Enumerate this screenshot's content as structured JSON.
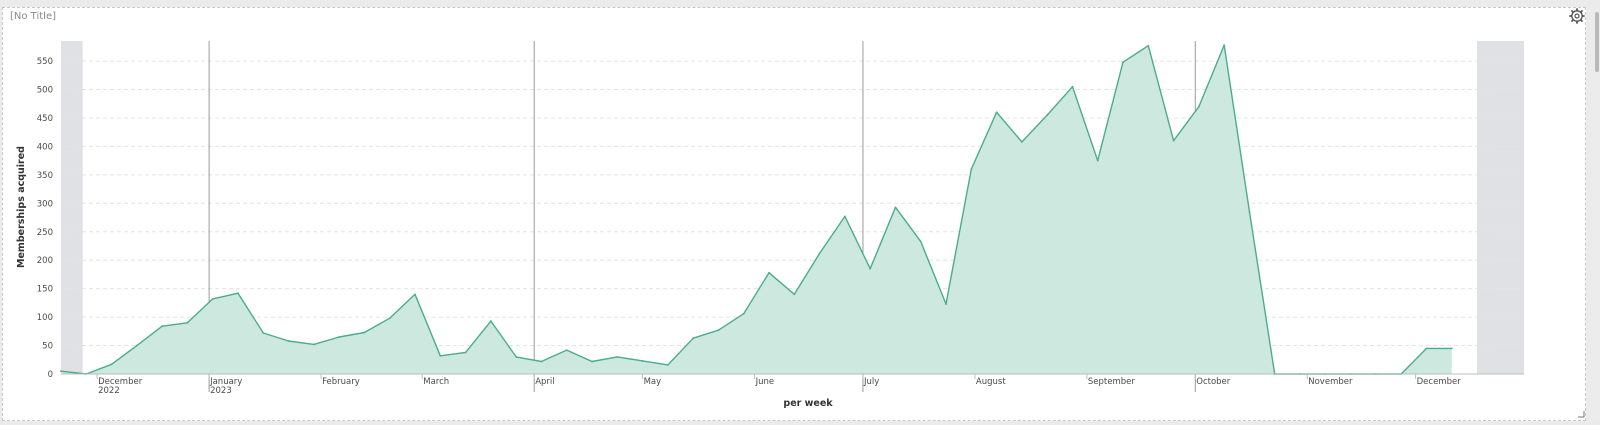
{
  "panel": {
    "title": "[No Title]"
  },
  "icons": {
    "settings": "gear-icon",
    "resize": "resize-handle-icon"
  },
  "colors": {
    "line": "#4aad8c",
    "fill": "#cde8df",
    "band": "#dfe1e5",
    "grid": "#e4e4e4",
    "marker": "#9a9a9a"
  },
  "chart_data": {
    "type": "area",
    "title": "",
    "xlabel": "per week",
    "ylabel": "Memberships acquired",
    "ylim": [
      0,
      580
    ],
    "yticks": [
      0,
      50,
      100,
      150,
      200,
      250,
      300,
      350,
      400,
      450,
      500,
      550
    ],
    "grid": true,
    "legend": "none",
    "x_ticks": [
      {
        "label": "December",
        "label2": "2022",
        "date": "2022-12-01"
      },
      {
        "label": "January",
        "label2": "2023",
        "date": "2023-01-01"
      },
      {
        "label": "February",
        "label2": "",
        "date": "2023-02-01"
      },
      {
        "label": "March",
        "label2": "",
        "date": "2023-03-01"
      },
      {
        "label": "April",
        "label2": "",
        "date": "2023-04-01"
      },
      {
        "label": "May",
        "label2": "",
        "date": "2023-05-01"
      },
      {
        "label": "June",
        "label2": "",
        "date": "2023-06-01"
      },
      {
        "label": "July",
        "label2": "",
        "date": "2023-07-01"
      },
      {
        "label": "August",
        "label2": "",
        "date": "2023-08-01"
      },
      {
        "label": "September",
        "label2": "",
        "date": "2023-09-01"
      },
      {
        "label": "October",
        "label2": "",
        "date": "2023-10-01"
      },
      {
        "label": "November",
        "label2": "",
        "date": "2023-11-01"
      },
      {
        "label": "December",
        "label2": "",
        "date": "2023-12-01"
      }
    ],
    "x_markers": [
      "2023-01-01",
      "2023-04-01",
      "2023-07-01",
      "2023-10-01"
    ],
    "x_range": [
      "2022-11-21",
      "2023-12-31"
    ],
    "shaded_bands": [
      [
        "2022-11-21",
        "2022-11-27"
      ],
      [
        "2023-12-18",
        "2023-12-31"
      ]
    ],
    "series": [
      {
        "x": [
          "2022-11-21",
          "2022-11-28",
          "2022-12-05",
          "2022-12-12",
          "2022-12-19",
          "2022-12-26",
          "2023-01-02",
          "2023-01-09",
          "2023-01-16",
          "2023-01-23",
          "2023-01-30",
          "2023-02-06",
          "2023-02-13",
          "2023-02-20",
          "2023-02-27",
          "2023-03-06",
          "2023-03-13",
          "2023-03-20",
          "2023-03-27",
          "2023-04-03",
          "2023-04-10",
          "2023-04-17",
          "2023-04-24",
          "2023-05-01",
          "2023-05-08",
          "2023-05-15",
          "2023-05-22",
          "2023-05-29",
          "2023-06-05",
          "2023-06-12",
          "2023-06-19",
          "2023-06-26",
          "2023-07-03",
          "2023-07-10",
          "2023-07-17",
          "2023-07-24",
          "2023-07-31",
          "2023-08-07",
          "2023-08-14",
          "2023-08-21",
          "2023-08-28",
          "2023-09-04",
          "2023-09-11",
          "2023-09-18",
          "2023-09-25",
          "2023-10-02",
          "2023-10-09",
          "2023-10-16",
          "2023-10-23",
          "2023-10-30",
          "2023-11-06",
          "2023-11-13",
          "2023-11-20",
          "2023-11-27",
          "2023-12-04",
          "2023-12-11"
        ],
        "values": [
          5,
          0,
          17,
          50,
          84,
          90,
          132,
          142,
          72,
          58,
          52,
          65,
          73,
          98,
          140,
          32,
          38,
          93,
          30,
          22,
          42,
          22,
          30,
          23,
          16,
          63,
          77,
          106,
          178,
          140,
          212,
          277,
          185,
          293,
          233,
          123,
          360,
          460,
          408,
          455,
          505,
          375,
          548,
          577,
          410,
          470,
          578,
          285,
          0,
          0,
          0,
          0,
          0,
          0,
          45,
          45
        ]
      }
    ]
  }
}
